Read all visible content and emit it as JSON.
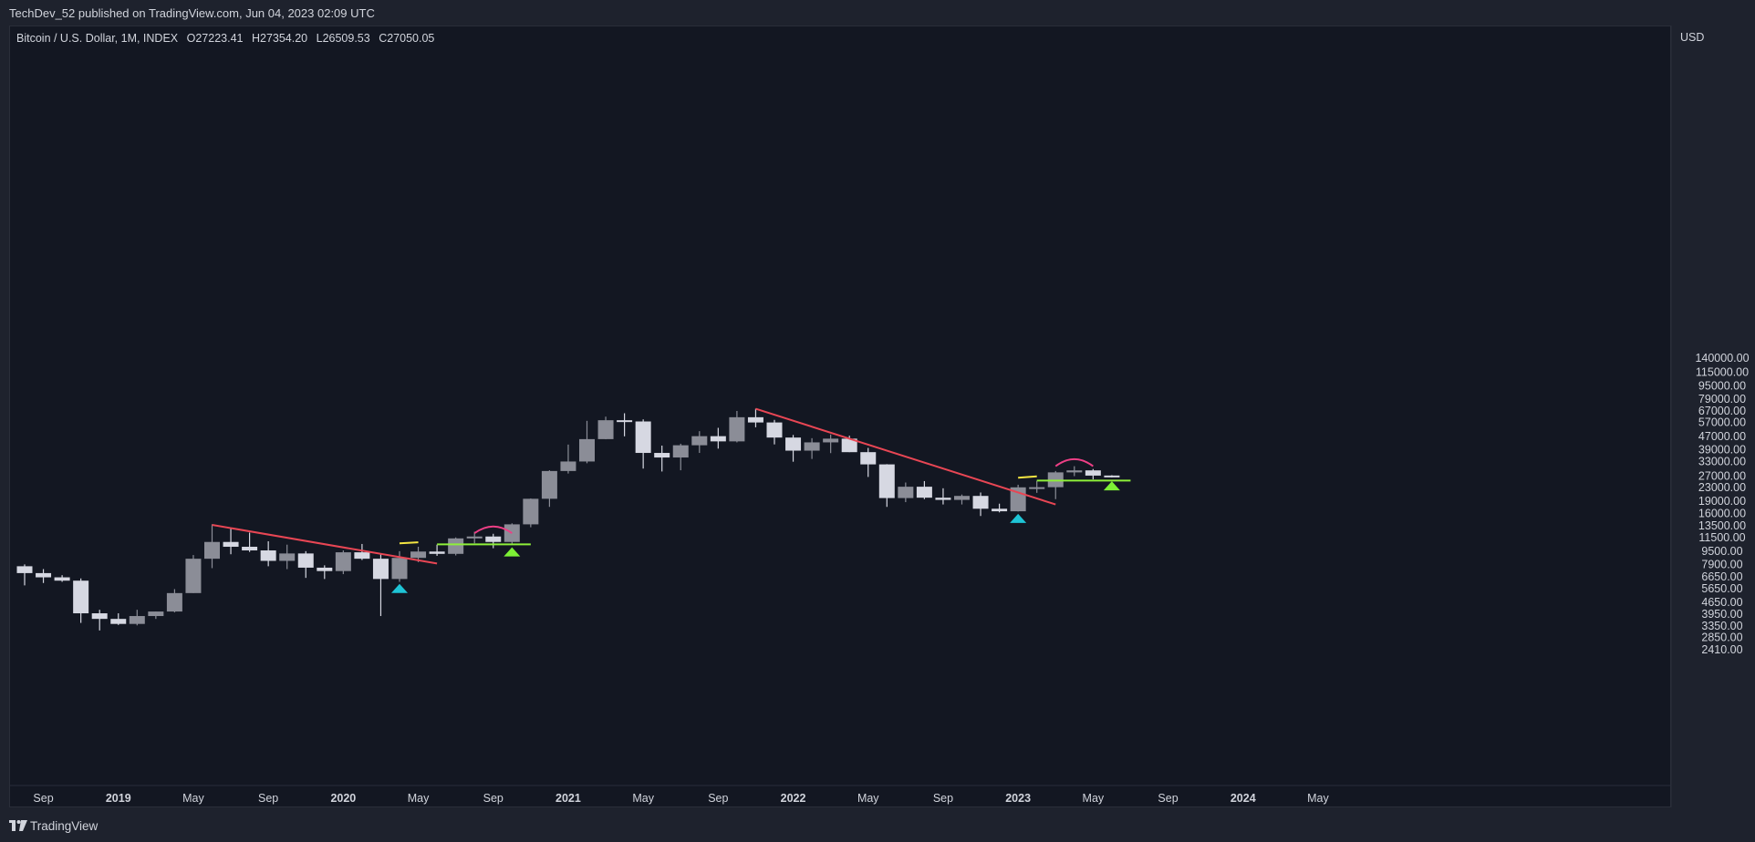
{
  "header": {
    "published_text": "TechDev_52 published on TradingView.com, Jun 04, 2023 02:09 UTC"
  },
  "legend": {
    "symbol": "Bitcoin / U.S. Dollar, 1M, INDEX",
    "open": "O27223.41",
    "high": "H27354.20",
    "low": "L26509.53",
    "close": "C27050.05"
  },
  "price_axis": {
    "unit": "USD"
  },
  "footer": {
    "brand": "TradingView"
  },
  "colors": {
    "up_candle": "#8b8d97",
    "down_candle": "#d6d8e2",
    "trendline": "#e84654",
    "support": "#8ef03a",
    "arc": "#ee3f86",
    "marker_up_green": "#7df135",
    "marker_up_cyan": "#1ec4d6",
    "yellow_mark": "#f5e642"
  },
  "chart_data": {
    "type": "candlestick",
    "scale": "log",
    "ylim": [
      2100,
      175000
    ],
    "y_ticks": [
      "140000.00",
      "115000.00",
      "95000.00",
      "79000.00",
      "67000.00",
      "57000.00",
      "47000.00",
      "39000.00",
      "33000.00",
      "27000.00",
      "23000.00",
      "19000.00",
      "16000.00",
      "13500.00",
      "11500.00",
      "9500.00",
      "7900.00",
      "6650.00",
      "5650.00",
      "4650.00",
      "3950.00",
      "3350.00",
      "2850.00",
      "2410.00"
    ],
    "x_ticks": [
      {
        "label": "Sep",
        "date": "2018-09",
        "bold": false
      },
      {
        "label": "2019",
        "date": "2019-01",
        "bold": true
      },
      {
        "label": "May",
        "date": "2019-05",
        "bold": false
      },
      {
        "label": "Sep",
        "date": "2019-09",
        "bold": false
      },
      {
        "label": "2020",
        "date": "2020-01",
        "bold": true
      },
      {
        "label": "May",
        "date": "2020-05",
        "bold": false
      },
      {
        "label": "Sep",
        "date": "2020-09",
        "bold": false
      },
      {
        "label": "2021",
        "date": "2021-01",
        "bold": true
      },
      {
        "label": "May",
        "date": "2021-05",
        "bold": false
      },
      {
        "label": "Sep",
        "date": "2021-09",
        "bold": false
      },
      {
        "label": "2022",
        "date": "2022-01",
        "bold": true
      },
      {
        "label": "May",
        "date": "2022-05",
        "bold": false
      },
      {
        "label": "Sep",
        "date": "2022-09",
        "bold": false
      },
      {
        "label": "2023",
        "date": "2023-01",
        "bold": true
      },
      {
        "label": "May",
        "date": "2023-05",
        "bold": false
      },
      {
        "label": "Sep",
        "date": "2023-09",
        "bold": false
      },
      {
        "label": "2024",
        "date": "2024-01",
        "bold": true
      },
      {
        "label": "May",
        "date": "2024-05",
        "bold": false
      }
    ],
    "candles": [
      {
        "date": "2018-08",
        "o": 7700,
        "h": 7900,
        "l": 5900,
        "c": 7000
      },
      {
        "date": "2018-09",
        "o": 7000,
        "h": 7400,
        "l": 6100,
        "c": 6600
      },
      {
        "date": "2018-10",
        "o": 6600,
        "h": 6800,
        "l": 6200,
        "c": 6300
      },
      {
        "date": "2018-11",
        "o": 6300,
        "h": 6500,
        "l": 3500,
        "c": 4000
      },
      {
        "date": "2018-12",
        "o": 4000,
        "h": 4200,
        "l": 3150,
        "c": 3700
      },
      {
        "date": "2019-01",
        "o": 3700,
        "h": 4000,
        "l": 3400,
        "c": 3450
      },
      {
        "date": "2019-02",
        "o": 3450,
        "h": 4200,
        "l": 3380,
        "c": 3850
      },
      {
        "date": "2019-03",
        "o": 3850,
        "h": 4100,
        "l": 3700,
        "c": 4100
      },
      {
        "date": "2019-04",
        "o": 4100,
        "h": 5600,
        "l": 4050,
        "c": 5300
      },
      {
        "date": "2019-05",
        "o": 5300,
        "h": 9000,
        "l": 5300,
        "c": 8550
      },
      {
        "date": "2019-06",
        "o": 8550,
        "h": 13800,
        "l": 7500,
        "c": 10800
      },
      {
        "date": "2019-07",
        "o": 10800,
        "h": 13100,
        "l": 9100,
        "c": 10100
      },
      {
        "date": "2019-08",
        "o": 10100,
        "h": 12300,
        "l": 9400,
        "c": 9600
      },
      {
        "date": "2019-09",
        "o": 9600,
        "h": 10900,
        "l": 7700,
        "c": 8300
      },
      {
        "date": "2019-10",
        "o": 8300,
        "h": 10400,
        "l": 7400,
        "c": 9200
      },
      {
        "date": "2019-11",
        "o": 9200,
        "h": 9500,
        "l": 6550,
        "c": 7550
      },
      {
        "date": "2019-12",
        "o": 7550,
        "h": 7800,
        "l": 6450,
        "c": 7200
      },
      {
        "date": "2020-01",
        "o": 7200,
        "h": 9600,
        "l": 6900,
        "c": 9350
      },
      {
        "date": "2020-02",
        "o": 9350,
        "h": 10500,
        "l": 8400,
        "c": 8550
      },
      {
        "date": "2020-03",
        "o": 8550,
        "h": 9200,
        "l": 3850,
        "c": 6450
      },
      {
        "date": "2020-04",
        "o": 6450,
        "h": 9500,
        "l": 6200,
        "c": 8650
      },
      {
        "date": "2020-05",
        "o": 8650,
        "h": 10100,
        "l": 8150,
        "c": 9450
      },
      {
        "date": "2020-06",
        "o": 9450,
        "h": 10400,
        "l": 8900,
        "c": 9150
      },
      {
        "date": "2020-07",
        "o": 9150,
        "h": 11500,
        "l": 8950,
        "c": 11350
      },
      {
        "date": "2020-08",
        "o": 11350,
        "h": 12450,
        "l": 10600,
        "c": 11650
      },
      {
        "date": "2020-09",
        "o": 11650,
        "h": 12100,
        "l": 9900,
        "c": 10800
      },
      {
        "date": "2020-10",
        "o": 10800,
        "h": 14000,
        "l": 10500,
        "c": 13800
      },
      {
        "date": "2020-11",
        "o": 13800,
        "h": 19800,
        "l": 13250,
        "c": 19700
      },
      {
        "date": "2020-12",
        "o": 19700,
        "h": 29300,
        "l": 17600,
        "c": 29000
      },
      {
        "date": "2021-01",
        "o": 29000,
        "h": 41900,
        "l": 28000,
        "c": 33100
      },
      {
        "date": "2021-02",
        "o": 33100,
        "h": 58300,
        "l": 32300,
        "c": 45200
      },
      {
        "date": "2021-03",
        "o": 45200,
        "h": 61800,
        "l": 45100,
        "c": 58800
      },
      {
        "date": "2021-04",
        "o": 58800,
        "h": 64800,
        "l": 47000,
        "c": 57800
      },
      {
        "date": "2021-05",
        "o": 57800,
        "h": 59500,
        "l": 30000,
        "c": 37300
      },
      {
        "date": "2021-06",
        "o": 37300,
        "h": 41300,
        "l": 28800,
        "c": 35000
      },
      {
        "date": "2021-07",
        "o": 35000,
        "h": 42400,
        "l": 29300,
        "c": 41500
      },
      {
        "date": "2021-08",
        "o": 41500,
        "h": 50500,
        "l": 37300,
        "c": 47100
      },
      {
        "date": "2021-09",
        "o": 47100,
        "h": 52900,
        "l": 39600,
        "c": 43800
      },
      {
        "date": "2021-10",
        "o": 43800,
        "h": 66900,
        "l": 43200,
        "c": 61300
      },
      {
        "date": "2021-11",
        "o": 61300,
        "h": 69000,
        "l": 53300,
        "c": 57000
      },
      {
        "date": "2021-12",
        "o": 57000,
        "h": 59100,
        "l": 42000,
        "c": 46200
      },
      {
        "date": "2022-01",
        "o": 46200,
        "h": 47900,
        "l": 33000,
        "c": 38500
      },
      {
        "date": "2022-02",
        "o": 38500,
        "h": 45800,
        "l": 34300,
        "c": 43200
      },
      {
        "date": "2022-03",
        "o": 43200,
        "h": 48200,
        "l": 37200,
        "c": 45500
      },
      {
        "date": "2022-04",
        "o": 45500,
        "h": 47400,
        "l": 37700,
        "c": 37700
      },
      {
        "date": "2022-05",
        "o": 37700,
        "h": 40000,
        "l": 26700,
        "c": 31800
      },
      {
        "date": "2022-06",
        "o": 31800,
        "h": 31900,
        "l": 17600,
        "c": 19900
      },
      {
        "date": "2022-07",
        "o": 19900,
        "h": 24700,
        "l": 18800,
        "c": 23300
      },
      {
        "date": "2022-08",
        "o": 23300,
        "h": 25200,
        "l": 19600,
        "c": 20000
      },
      {
        "date": "2022-09",
        "o": 20000,
        "h": 22800,
        "l": 18200,
        "c": 19400
      },
      {
        "date": "2022-10",
        "o": 19400,
        "h": 20900,
        "l": 18200,
        "c": 20500
      },
      {
        "date": "2022-11",
        "o": 20500,
        "h": 21500,
        "l": 15500,
        "c": 17150
      },
      {
        "date": "2022-12",
        "o": 17150,
        "h": 18400,
        "l": 16300,
        "c": 16550
      },
      {
        "date": "2023-01",
        "o": 16550,
        "h": 23950,
        "l": 16500,
        "c": 23100
      },
      {
        "date": "2023-02",
        "o": 23100,
        "h": 25300,
        "l": 21400,
        "c": 23150
      },
      {
        "date": "2023-03",
        "o": 23150,
        "h": 29000,
        "l": 19600,
        "c": 28450
      },
      {
        "date": "2023-04",
        "o": 28450,
        "h": 31000,
        "l": 27000,
        "c": 29250
      },
      {
        "date": "2023-05",
        "o": 29250,
        "h": 29800,
        "l": 25800,
        "c": 27200
      },
      {
        "date": "2023-06",
        "o": 27223.41,
        "h": 27354.2,
        "l": 26509.53,
        "c": 27050.05
      }
    ],
    "lines": [
      {
        "kind": "trendline",
        "x1": "2019-06",
        "y1": 13700,
        "x2": "2020-06",
        "y2": 8000
      },
      {
        "kind": "trendline",
        "x1": "2021-11",
        "y1": 69000,
        "x2": "2023-03",
        "y2": 18200
      },
      {
        "kind": "support",
        "x1": "2020-06",
        "y1": 10450,
        "x2": "2020-11",
        "y2": 10450
      },
      {
        "kind": "support",
        "x1": "2023-02",
        "y1": 25400,
        "x2": "2023-07",
        "y2": 25400
      }
    ],
    "yellow_marks": [
      {
        "x1": "2020-04",
        "y1": 10600,
        "x2": "2020-05",
        "y2": 10750
      },
      {
        "x1": "2023-01",
        "y1": 26400,
        "x2": "2023-02",
        "y2": 26900
      }
    ],
    "arcs": [
      {
        "from": "2020-08",
        "to": "2020-10",
        "base": 12200,
        "top": 13400
      },
      {
        "from": "2023-03",
        "to": "2023-05",
        "base": 31000,
        "top": 34200
      }
    ],
    "markers": [
      {
        "date": "2020-04",
        "price": 5650,
        "kind": "cyan"
      },
      {
        "date": "2020-10",
        "price": 9400,
        "kind": "green"
      },
      {
        "date": "2023-01",
        "price": 15000,
        "kind": "cyan"
      },
      {
        "date": "2023-06",
        "price": 23600,
        "kind": "green"
      }
    ]
  }
}
